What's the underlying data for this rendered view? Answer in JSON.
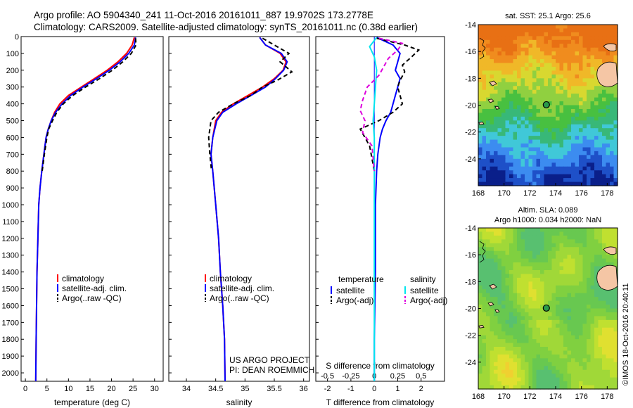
{
  "header": {
    "line1": "Argo profile: AO 5904340_241 11-Oct-2016 20161011_887 19.9702S 173.2778E",
    "line2": "Climatology: CARS2009. Satellite-adjusted climatology: synTS_20161011.nc (0.38d earlier)"
  },
  "credits": {
    "project": "US ARGO PROJECT",
    "pi": "PI: DEAN ROEMMICH",
    "stamp": "©IMOS 18-Oct-2016 20:40:11"
  },
  "colors": {
    "climatology": "#ff0000",
    "satellite": "#0000ff",
    "argo": "#000000",
    "salinity_satellite": "#00e5ee",
    "salinity_argo": "#dd00dd",
    "land": "#f5c6a5"
  },
  "chart_data": [
    {
      "type": "line",
      "name": "temperature-profile",
      "xlabel": "temperature (deg C)",
      "ylabel": "",
      "xlim": [
        -1,
        32
      ],
      "ylim": [
        2050,
        0
      ],
      "xticks": [
        0,
        5,
        10,
        15,
        20,
        25,
        30
      ],
      "yticks": [
        0,
        100,
        200,
        300,
        400,
        500,
        600,
        700,
        800,
        900,
        1000,
        1100,
        1200,
        1300,
        1400,
        1500,
        1600,
        1700,
        1800,
        1900,
        2000
      ],
      "legend": [
        "climatology",
        "satellite-adj. clim.",
        "Argo(..raw -QC)"
      ],
      "legend_position": "bottom-center",
      "series": [
        {
          "name": "climatology",
          "color": "#ff0000",
          "dash": "",
          "x": [
            25.3,
            24.8,
            23.5,
            21.5,
            19.0,
            16.0,
            13.0,
            10.0,
            8.0,
            6.8,
            6.0,
            5.3,
            4.8,
            4.3,
            3.8,
            3.4,
            3.1,
            2.9,
            2.7,
            2.6,
            2.5,
            2.4
          ],
          "y": [
            5,
            50,
            100,
            150,
            200,
            250,
            300,
            350,
            400,
            450,
            500,
            550,
            600,
            700,
            800,
            900,
            1000,
            1200,
            1400,
            1600,
            1800,
            2050
          ]
        },
        {
          "name": "satellite-adj. clim.",
          "color": "#0000ff",
          "dash": "",
          "x": [
            25.6,
            25.3,
            24.0,
            22.0,
            19.5,
            16.5,
            13.4,
            10.5,
            8.5,
            7.0,
            6.0,
            5.3,
            4.8,
            4.3,
            3.8,
            3.4,
            3.1,
            2.9,
            2.7,
            2.6,
            2.5,
            2.4
          ],
          "y": [
            5,
            50,
            100,
            150,
            200,
            250,
            300,
            350,
            400,
            450,
            500,
            550,
            600,
            700,
            800,
            900,
            1000,
            1200,
            1400,
            1600,
            1800,
            2050
          ]
        },
        {
          "name": "Argo(..raw -QC)",
          "color": "#000000",
          "dash": "6,4",
          "x": [
            25.6,
            25.7,
            24.6,
            22.6,
            20.2,
            17.2,
            14.0,
            11.0,
            8.8,
            7.3,
            6.3,
            5.4,
            5.0,
            4.4,
            3.9
          ],
          "y": [
            10,
            50,
            100,
            150,
            200,
            250,
            300,
            350,
            400,
            450,
            500,
            550,
            600,
            700,
            800
          ]
        }
      ]
    },
    {
      "type": "line",
      "name": "salinity-profile",
      "xlabel": "salinity",
      "ylabel": "",
      "xlim": [
        33.7,
        36.1
      ],
      "ylim": [
        2050,
        0
      ],
      "xticks": [
        34,
        34.5,
        35,
        35.5,
        36
      ],
      "legend": [
        "climatology",
        "satellite-adj. clim.",
        "Argo(..raw -QC)"
      ],
      "legend_position": "bottom-center",
      "series": [
        {
          "name": "climatology",
          "color": "#ff0000",
          "dash": "",
          "x": [
            35.25,
            35.35,
            35.6,
            35.7,
            35.65,
            35.5,
            35.3,
            35.05,
            34.8,
            34.6,
            34.5,
            34.45,
            34.42,
            34.45,
            34.5,
            34.55,
            34.58,
            34.62,
            34.65,
            34.66
          ],
          "y": [
            5,
            50,
            100,
            150,
            200,
            250,
            300,
            350,
            400,
            450,
            500,
            600,
            700,
            800,
            1000,
            1200,
            1400,
            1600,
            1800,
            2050
          ]
        },
        {
          "name": "satellite-adj. clim.",
          "color": "#0000ff",
          "dash": "",
          "x": [
            35.25,
            35.35,
            35.62,
            35.72,
            35.66,
            35.52,
            35.35,
            35.1,
            34.85,
            34.62,
            34.52,
            34.45,
            34.42,
            34.45,
            34.5,
            34.55,
            34.58,
            34.62,
            34.65,
            34.66
          ],
          "y": [
            5,
            50,
            100,
            150,
            200,
            250,
            300,
            350,
            400,
            450,
            500,
            600,
            700,
            800,
            1000,
            1200,
            1400,
            1600,
            1800,
            2050
          ]
        },
        {
          "name": "Argo(..raw -QC)",
          "color": "#000000",
          "dash": "6,4",
          "x": [
            35.3,
            35.5,
            35.75,
            35.6,
            35.8,
            35.55,
            35.3,
            35.1,
            34.8,
            34.55,
            34.42,
            34.38,
            34.4,
            34.43
          ],
          "y": [
            10,
            50,
            100,
            150,
            210,
            260,
            300,
            350,
            400,
            450,
            500,
            600,
            700,
            800
          ]
        }
      ]
    },
    {
      "type": "line",
      "name": "difference-profile",
      "xlabel": "T difference from climatology",
      "xlabel_top": "S difference from climatology",
      "ylabel": "",
      "xlim": [
        -2.5,
        3
      ],
      "ylim": [
        2050,
        0
      ],
      "xticks": [
        -2,
        -1,
        0,
        1,
        2
      ],
      "xticks_secondary": [
        "-0.5",
        "-0.25",
        "0",
        "0.25",
        "0.5"
      ],
      "legend_headers": [
        "temperature",
        "salinity"
      ],
      "legend": [
        "satellite",
        "Argo(-adj)",
        "satellite",
        "Argo(-adj)"
      ],
      "legend_position": "bottom",
      "series": [
        {
          "name": "satellite",
          "group": "temperature",
          "color": "#0000ff",
          "dash": "",
          "x": [
            0.1,
            0.8,
            1.1,
            1.0,
            0.9,
            1.1,
            1.0,
            0.9,
            0.8,
            0.7,
            0.5,
            0.35,
            0.25,
            0.15,
            0.1,
            0.05,
            0.05,
            0.0,
            0.0
          ],
          "y": [
            5,
            50,
            100,
            150,
            200,
            250,
            300,
            350,
            400,
            450,
            500,
            550,
            600,
            700,
            800,
            1000,
            1400,
            1800,
            2050
          ]
        },
        {
          "name": "Argo(-adj)",
          "group": "temperature",
          "color": "#000000",
          "dash": "6,4",
          "x": [
            0.1,
            1.3,
            1.9,
            1.6,
            1.2,
            1.3,
            1.1,
            1.0,
            1.1,
            1.2,
            0.8,
            0.2,
            -0.6,
            -0.2,
            0.0
          ],
          "y": [
            10,
            50,
            80,
            120,
            170,
            210,
            260,
            300,
            350,
            400,
            450,
            500,
            550,
            650,
            800
          ]
        },
        {
          "name": "satellite",
          "group": "salinity",
          "color": "#00e5ee",
          "dash": "",
          "x": [
            0.1,
            -0.2,
            0.0,
            0.1,
            0.05,
            0.0,
            -0.05,
            0.0,
            0.0,
            0.0,
            0.0,
            0.0,
            0.0
          ],
          "y": [
            5,
            60,
            120,
            200,
            300,
            400,
            500,
            600,
            700,
            900,
            1200,
            1600,
            2050
          ]
        },
        {
          "name": "Argo(-adj)",
          "group": "salinity",
          "color": "#dd00dd",
          "dash": "6,4",
          "x": [
            0.2,
            1.2,
            1.0,
            0.6,
            0.4,
            0.2,
            -0.3,
            -0.5,
            -0.6,
            -0.4,
            -0.5,
            -0.1,
            0.0
          ],
          "y": [
            10,
            40,
            80,
            130,
            180,
            230,
            300,
            380,
            440,
            500,
            570,
            650,
            800
          ]
        }
      ]
    },
    {
      "type": "heatmap",
      "name": "sst-map",
      "title": "sat. SST: 25.1  Argo: 25.6",
      "xlim": [
        168,
        178.8
      ],
      "ylim": [
        -26,
        -14
      ],
      "xticks": [
        168,
        170,
        172,
        174,
        176,
        178
      ],
      "yticks": [
        -14,
        -16,
        -18,
        -20,
        -22,
        -24
      ],
      "marker": {
        "lon": 173.28,
        "lat": -19.97
      },
      "palette": [
        "#0a1f8a",
        "#1e50c8",
        "#3c8cf0",
        "#40c8d8",
        "#38b878",
        "#48c040",
        "#90d040",
        "#d8d830",
        "#f0b828",
        "#f08c1e",
        "#e87014"
      ]
    },
    {
      "type": "heatmap",
      "name": "sla-map",
      "title": "Altim. SLA: 0.089",
      "subtitle": "Argo h1000: 0.034 h2000: NaN",
      "xlim": [
        168,
        178.8
      ],
      "ylim": [
        -26,
        -14
      ],
      "xticks": [
        168,
        170,
        172,
        174,
        176,
        178
      ],
      "yticks": [
        -14,
        -16,
        -18,
        -20,
        -22,
        -24
      ],
      "marker": {
        "lon": 173.28,
        "lat": -19.97
      },
      "palette": [
        "#58c070",
        "#68c850",
        "#80d040",
        "#a0d838",
        "#c0e030",
        "#e0e030",
        "#f0d030"
      ]
    }
  ]
}
